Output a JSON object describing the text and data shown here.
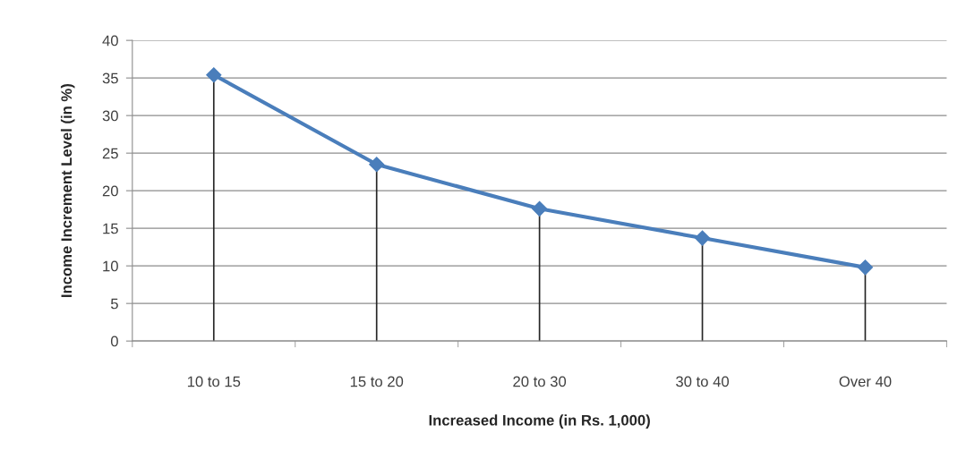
{
  "chart_data": {
    "type": "line",
    "xlabel": "Increased Income (in Rs. 1,000)",
    "ylabel": "Income Increment Level (in %)",
    "categories": [
      "10 to 15",
      "15 to 20",
      "20 to 30",
      "30 to 40",
      "Over 40"
    ],
    "series": [
      {
        "type": "lollipop",
        "color": "#4a7ebb",
        "marker": "diamond",
        "values": [
          35.4,
          23.5,
          17.6,
          13.7,
          9.8
        ]
      },
      {
        "color": "#4a7ebb",
        "values": [
          35.4,
          23.5,
          17.6,
          13.7,
          9.8
        ]
      }
    ],
    "ylim": [
      0,
      40
    ],
    "yticks": [
      0,
      5,
      10,
      15,
      20,
      25,
      30,
      35,
      40
    ],
    "grid": "y",
    "line_style": "solid"
  }
}
